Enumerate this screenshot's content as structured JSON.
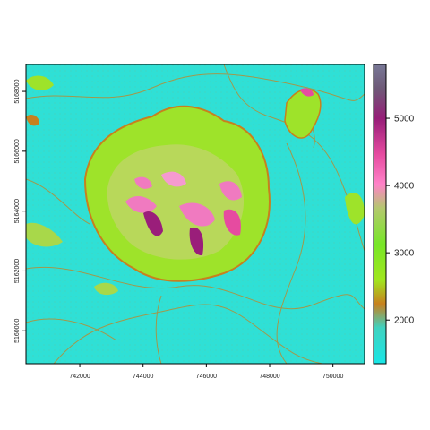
{
  "chart_data": {
    "type": "heatmap",
    "title": "",
    "xlabel": "",
    "ylabel": "",
    "x_ticks": [
      742000,
      744000,
      746000,
      748000,
      750000
    ],
    "x_tick_labels": [
      "742000",
      "744000",
      "746000",
      "748000",
      "750000"
    ],
    "y_ticks": [
      5160000,
      5162000,
      5164000,
      5166000,
      5168000
    ],
    "y_tick_labels": [
      "5160000",
      "5162000",
      "5164000",
      "5166000",
      "5168000"
    ],
    "xlim": [
      740300,
      751000
    ],
    "ylim": [
      5158900,
      5168900
    ],
    "colorbar": {
      "range": [
        1350,
        5800
      ],
      "ticks": [
        2000,
        3000,
        4000,
        5000
      ],
      "tick_labels": [
        "2000",
        "3000",
        "4000",
        "5000"
      ],
      "colors": [
        "#19e6e6",
        "#3fd2c0",
        "#c8801e",
        "#a0e61e",
        "#78e628",
        "#b4c86e",
        "#ff82c8",
        "#e64ba0",
        "#961e78",
        "#6e5a78",
        "#787896"
      ]
    },
    "grid": false
  }
}
